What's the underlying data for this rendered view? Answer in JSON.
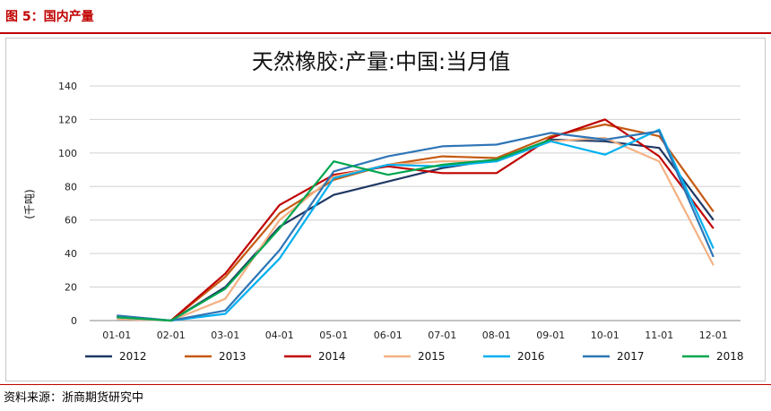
{
  "header": {
    "figure_title": "图 5：国内产量"
  },
  "source": "资料来源：浙商期货研究中",
  "chart_data": {
    "type": "line",
    "title": "天然橡胶:产量:中国:当月值",
    "xlabel": "",
    "ylabel": "(千吨)",
    "ylim": [
      0,
      140
    ],
    "yticks": [
      0,
      20,
      40,
      60,
      80,
      100,
      120,
      140
    ],
    "grid": true,
    "legend_placement": "bottom",
    "categories": [
      "01-01",
      "02-01",
      "03-01",
      "04-01",
      "05-01",
      "06-01",
      "07-01",
      "08-01",
      "09-01",
      "10-01",
      "11-01",
      "12-01"
    ],
    "series": [
      {
        "name": "2012",
        "color": "#1f3864",
        "values": [
          2,
          0,
          20,
          56,
          75,
          83,
          91,
          96,
          108,
          107,
          103,
          60
        ]
      },
      {
        "name": "2013",
        "color": "#c55a11",
        "values": [
          2,
          0,
          26,
          64,
          84,
          93,
          98,
          97,
          110,
          117,
          110,
          65
        ]
      },
      {
        "name": "2014",
        "color": "#c00000",
        "values": [
          2,
          0,
          28,
          69,
          87,
          92,
          88,
          88,
          109,
          120,
          98,
          55
        ]
      },
      {
        "name": "2015",
        "color": "#f4b183",
        "values": [
          1,
          0,
          13,
          60,
          86,
          93,
          95,
          95,
          107,
          109,
          95,
          33
        ]
      },
      {
        "name": "2016",
        "color": "#00b0f0",
        "values": [
          2,
          0,
          4,
          37,
          85,
          93,
          92,
          95,
          107,
          99,
          114,
          43
        ]
      },
      {
        "name": "2017",
        "color": "#2e75b6",
        "values": [
          3,
          0,
          6,
          42,
          89,
          98,
          104,
          105,
          112,
          108,
          113,
          38
        ]
      },
      {
        "name": "2018",
        "color": "#00a64f",
        "values": [
          2,
          0,
          19,
          55,
          95,
          87,
          93,
          96,
          108,
          null,
          null,
          null
        ]
      }
    ]
  }
}
